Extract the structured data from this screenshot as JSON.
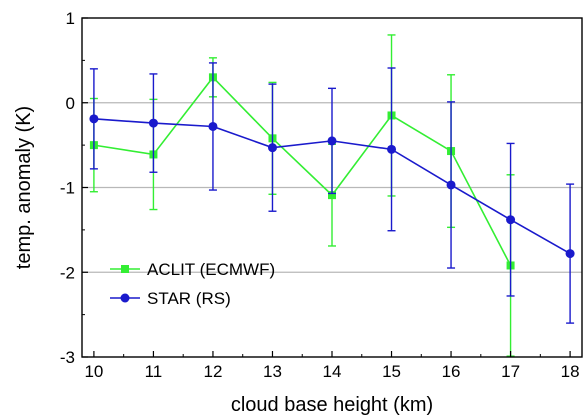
{
  "chart_data": {
    "type": "line",
    "title": "",
    "xlabel": "cloud base height (km)",
    "ylabel": "temp. anomaly (K)",
    "xlim": [
      9.8,
      18.2
    ],
    "ylim": [
      -3,
      1
    ],
    "x_ticks": [
      10,
      11,
      12,
      13,
      14,
      15,
      16,
      17,
      18
    ],
    "y_ticks": [
      -3,
      -2,
      -1,
      0,
      1
    ],
    "grid_lines_y": [
      -2,
      -1,
      0
    ],
    "legend_position": "bottom-left",
    "series": [
      {
        "name": "ACLIT (ECMWF)",
        "color": "#33ee33",
        "marker": "square",
        "x": [
          10,
          11,
          12,
          13,
          14,
          15,
          16,
          17
        ],
        "y": [
          -0.5,
          -0.61,
          0.3,
          -0.42,
          -1.09,
          -0.15,
          -0.57,
          -1.92
        ],
        "err": [
          0.55,
          0.65,
          0.23,
          0.66,
          0.6,
          0.95,
          0.9,
          1.07
        ]
      },
      {
        "name": "STAR (RS)",
        "color": "#1a1acc",
        "marker": "circle",
        "x": [
          10,
          11,
          12,
          13,
          14,
          15,
          16,
          17,
          18
        ],
        "y": [
          -0.19,
          -0.24,
          -0.28,
          -0.53,
          -0.45,
          -0.55,
          -0.97,
          -1.38,
          -1.78
        ],
        "err": [
          0.59,
          0.58,
          0.75,
          0.75,
          0.62,
          0.96,
          0.98,
          0.9,
          0.82
        ]
      }
    ]
  }
}
